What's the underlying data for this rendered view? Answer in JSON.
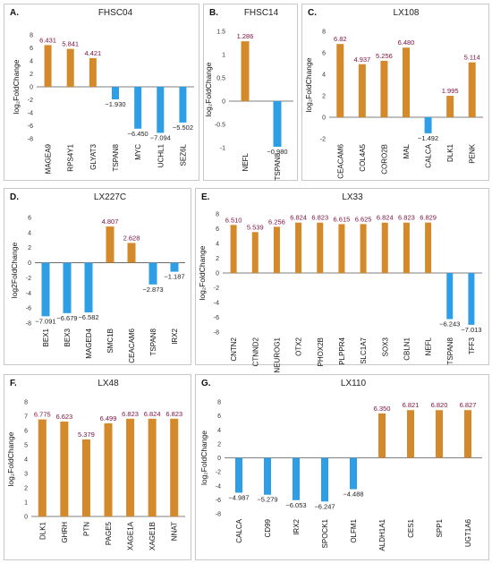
{
  "colors": {
    "up": "#d4892b",
    "down": "#2e9fe6",
    "up_label": "#7a1040",
    "down_label": "#222222",
    "axis": "#555555"
  },
  "chart_data": [
    {
      "panel": "A.",
      "title": "FHSC04",
      "type": "bar",
      "ylabel": "log₂FoldChange",
      "ylim": [
        -8,
        8
      ],
      "yticks": [
        "8",
        "6",
        "4",
        "2",
        "0",
        "-2",
        "-4",
        "-6",
        "-8"
      ],
      "categories": [
        "MAGEA9",
        "RPS4Y1",
        "GLYAT3",
        "TSPAN8",
        "MYC",
        "UCHL1",
        "SEZ6L"
      ],
      "values": [
        6.431,
        5.841,
        4.421,
        -1.93,
        -6.45,
        -7.094,
        -5.502
      ],
      "value_labels": [
        "6.431",
        "5.841",
        "4.421",
        "−1.930",
        "−6.450",
        "−7.094",
        "−5.502"
      ]
    },
    {
      "panel": "B.",
      "title": "FHSC14",
      "type": "bar",
      "ylabel": "log₂FoldChange",
      "ylim": [
        -1,
        1.5
      ],
      "yticks": [
        "1.5",
        "1",
        "0.5",
        "0",
        "-0.5",
        "-1"
      ],
      "categories": [
        "NEFL",
        "TSPAN8"
      ],
      "values": [
        1.286,
        -0.98
      ],
      "value_labels": [
        "1.286",
        "−0.980"
      ]
    },
    {
      "panel": "C.",
      "title": "LX108",
      "type": "bar",
      "ylabel": "log₂FoldChange",
      "ylim": [
        -2,
        8
      ],
      "yticks": [
        "8",
        "6",
        "4",
        "2",
        "0",
        "-2"
      ],
      "categories": [
        "CEACAM6",
        "COL4A5",
        "CORO2B",
        "MAL",
        "CALCA",
        "DLK1",
        "PENK"
      ],
      "values": [
        6.82,
        4.937,
        5.256,
        6.48,
        -1.492,
        1.995,
        5.114
      ],
      "value_labels": [
        "6.82",
        "4.937",
        "5.256",
        "6.480",
        "−1.492",
        "1.995",
        "5.114"
      ]
    },
    {
      "panel": "D.",
      "title": "LX227C",
      "type": "bar",
      "ylabel": "log2FoldChange",
      "ylim": [
        -8,
        6
      ],
      "yticks": [
        "6",
        "4",
        "2",
        "0",
        "-2",
        "-4",
        "-6",
        "-8"
      ],
      "categories": [
        "BEX1",
        "BEX3",
        "MAGED4",
        "SMC1B",
        "CEACAM6",
        "TSPAN8",
        "IRX2"
      ],
      "values": [
        -7.091,
        -6.679,
        -6.582,
        4.807,
        2.628,
        -2.873,
        -1.187
      ],
      "value_labels": [
        "−7.091",
        "−6.679",
        "−6.582",
        "4.807",
        "2.628",
        "−2.873",
        "−1.187"
      ]
    },
    {
      "panel": "E.",
      "title": "LX33",
      "type": "bar",
      "ylabel": "log₂FoldChange",
      "ylim": [
        -8,
        8
      ],
      "yticks": [
        "8",
        "6",
        "4",
        "2",
        "0",
        "-2",
        "-4",
        "-6",
        "-8"
      ],
      "categories": [
        "CNTN2",
        "CTNND2",
        "NEUROG1",
        "OTX2",
        "PHOX2B",
        "PLPPR4",
        "SLC1A7",
        "SOX3",
        "CBLN1",
        "NEFL",
        "TSPAN8",
        "TFF3"
      ],
      "values": [
        6.51,
        5.539,
        6.256,
        6.824,
        6.823,
        6.615,
        6.625,
        6.824,
        6.823,
        6.829,
        -6.243,
        -7.013
      ],
      "value_labels": [
        "6.510",
        "5.539",
        "6.256",
        "6.824",
        "6.823",
        "6.615",
        "6.625",
        "6.824",
        "6.823",
        "6.829",
        "−6.243",
        "−7.013"
      ]
    },
    {
      "panel": "F.",
      "title": "LX48",
      "type": "bar",
      "ylabel": "log₂FoldChange",
      "ylim": [
        0,
        8
      ],
      "yticks": [
        "8",
        "7",
        "6",
        "5",
        "4",
        "3",
        "2",
        "1",
        "0"
      ],
      "categories": [
        "DLK1",
        "GHRH",
        "PTN",
        "PAGE5",
        "XAGE1A",
        "XAGE1B",
        "NNAT"
      ],
      "values": [
        6.775,
        6.623,
        5.379,
        6.499,
        6.823,
        6.824,
        6.823
      ],
      "value_labels": [
        "6.775",
        "6.623",
        "5.379",
        "6.499",
        "6.823",
        "6.824",
        "6.823"
      ]
    },
    {
      "panel": "G.",
      "title": "LX110",
      "type": "bar",
      "ylabel": "log₂FoldChange",
      "ylim": [
        -8,
        8
      ],
      "yticks": [
        "8",
        "6",
        "4",
        "2",
        "0",
        "-2",
        "-4",
        "-6",
        "-8"
      ],
      "categories": [
        "CALCA",
        "CD99",
        "IRX2",
        "SPOCK1",
        "OLFM1",
        "ALDH1A1",
        "CES1",
        "SPP1",
        "UGT1A6"
      ],
      "values": [
        -4.987,
        -5.279,
        -6.053,
        -6.247,
        -4.488,
        6.35,
        6.821,
        6.82,
        6.827
      ],
      "value_labels": [
        "−4.987",
        "−5.279",
        "−6.053",
        "−6.247",
        "−4.488",
        "6.350",
        "6.821",
        "6.820",
        "6.827"
      ]
    }
  ]
}
